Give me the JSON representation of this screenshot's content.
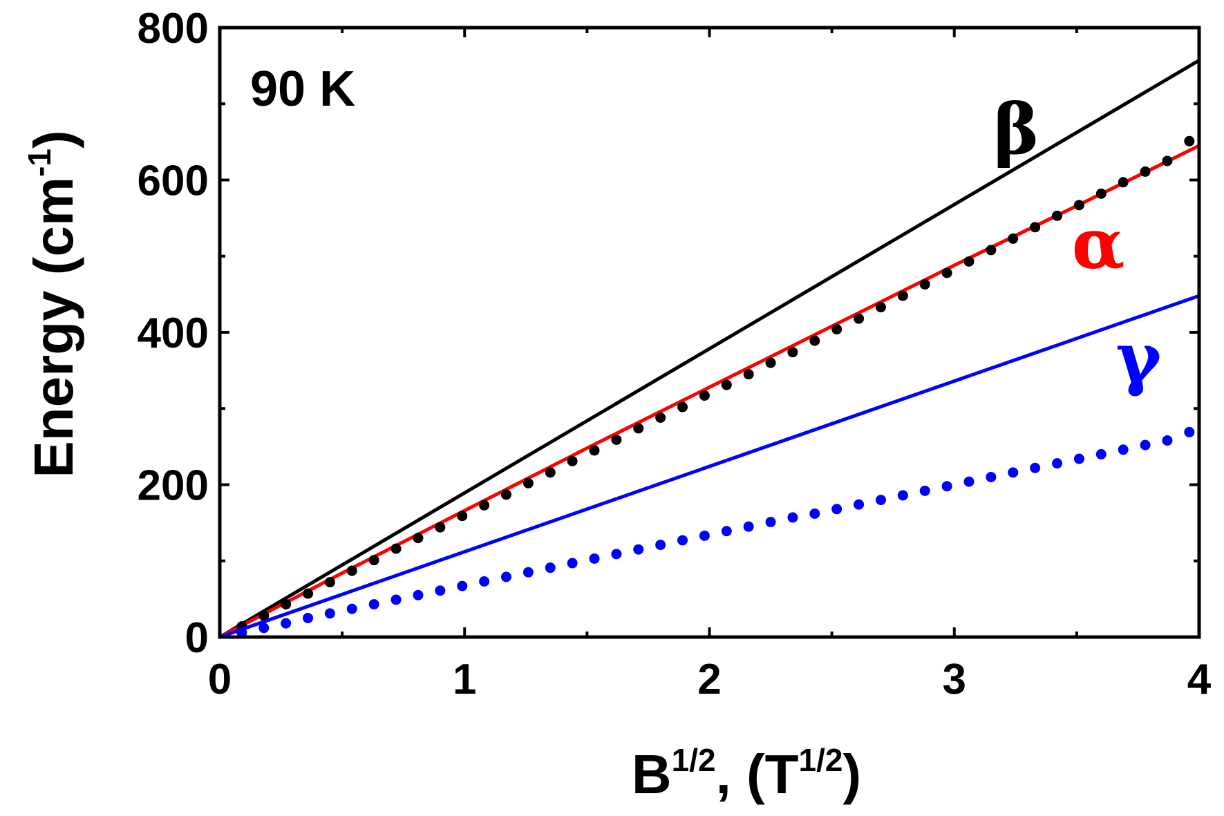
{
  "chart_data": {
    "type": "line",
    "title": "",
    "annotation": "90 K",
    "xlabel": {
      "base": "B",
      "sup": "1/2",
      "mid": ", (T",
      "sup2": "1/2",
      "end": ")"
    },
    "ylabel": {
      "base": "Energy (cm",
      "sup": "-1",
      "end": ")"
    },
    "xlim": [
      0,
      4
    ],
    "ylim": [
      0,
      800
    ],
    "xticks": [
      0,
      1,
      2,
      3,
      4
    ],
    "yticks": [
      0,
      200,
      400,
      600,
      800
    ],
    "grid": false,
    "series": [
      {
        "name": "β",
        "style": "line",
        "color": "#000000",
        "x": [
          0,
          4
        ],
        "y": [
          0,
          757
        ]
      },
      {
        "name": "α",
        "style": "line",
        "color": "#ff0000",
        "x": [
          0,
          0.5,
          1.0,
          1.5,
          2.0,
          2.5,
          3.0,
          3.5,
          4.0
        ],
        "y": [
          0,
          84,
          166,
          248,
          328,
          408,
          488,
          566,
          645
        ]
      },
      {
        "name": "",
        "style": "dots",
        "color": "#000000",
        "x": [
          0.09,
          0.18,
          0.27,
          0.36,
          0.45,
          0.54,
          0.63,
          0.72,
          0.81,
          0.9,
          0.99,
          1.08,
          1.17,
          1.26,
          1.35,
          1.44,
          1.53,
          1.62,
          1.71,
          1.8,
          1.89,
          1.98,
          2.07,
          2.16,
          2.25,
          2.34,
          2.43,
          2.52,
          2.61,
          2.7,
          2.79,
          2.88,
          2.97,
          3.06,
          3.15,
          3.24,
          3.33,
          3.42,
          3.51,
          3.6,
          3.69,
          3.78,
          3.87,
          3.96
        ],
        "y": [
          14,
          28,
          43,
          57,
          72,
          87,
          101,
          116,
          130,
          144,
          159,
          173,
          187,
          202,
          216,
          231,
          245,
          259,
          274,
          288,
          302,
          317,
          331,
          345,
          360,
          374,
          389,
          404,
          418,
          433,
          448,
          463,
          478,
          493,
          508,
          523,
          538,
          553,
          567,
          582,
          597,
          611,
          625,
          651
        ]
      },
      {
        "name": "γ",
        "style": "line",
        "color": "#0000ff",
        "x": [
          0,
          4
        ],
        "y": [
          0,
          448
        ]
      },
      {
        "name": "",
        "style": "dots",
        "color": "#0000ff",
        "x": [
          0.09,
          0.18,
          0.27,
          0.36,
          0.45,
          0.54,
          0.63,
          0.72,
          0.81,
          0.9,
          0.99,
          1.08,
          1.17,
          1.26,
          1.35,
          1.44,
          1.53,
          1.62,
          1.71,
          1.8,
          1.89,
          1.98,
          2.07,
          2.16,
          2.25,
          2.34,
          2.43,
          2.52,
          2.61,
          2.7,
          2.79,
          2.88,
          2.97,
          3.06,
          3.15,
          3.24,
          3.33,
          3.42,
          3.51,
          3.6,
          3.69,
          3.78,
          3.87,
          3.96
        ],
        "y": [
          6,
          12,
          18,
          25,
          31,
          37,
          43,
          49,
          55,
          61,
          67,
          73,
          79,
          85,
          91,
          97,
          103,
          109,
          115,
          121,
          127,
          133,
          139,
          145,
          151,
          157,
          162,
          168,
          174,
          180,
          186,
          192,
          198,
          204,
          210,
          216,
          222,
          228,
          234,
          240,
          246,
          252,
          258,
          269
        ]
      }
    ],
    "labels": [
      {
        "text": "β",
        "color": "#000000",
        "x": 3.16,
        "y": 635
      },
      {
        "text": "α",
        "color": "#ff0000",
        "x": 3.48,
        "y": 485
      },
      {
        "text": "γ",
        "color": "#0000ff",
        "x": 3.66,
        "y": 335
      }
    ]
  }
}
